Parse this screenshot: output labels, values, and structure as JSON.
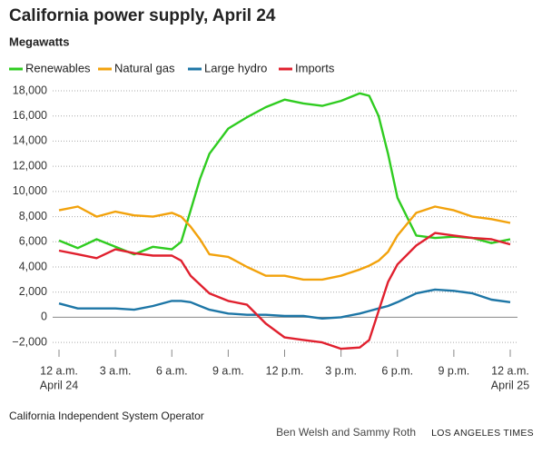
{
  "chart_data": {
    "type": "line",
    "title": "California power supply, April 24",
    "subtitle": "Megawatts",
    "source": "California Independent System Operator",
    "credit": "Ben Welsh and Sammy Roth",
    "publisher": "LOS ANGELES TIMES",
    "x_start_date": "April 24",
    "x_end_date": "April 25",
    "x": [
      0,
      1,
      2,
      3,
      4,
      5,
      6,
      6.5,
      7,
      7.5,
      8,
      9,
      10,
      11,
      12,
      13,
      14,
      15,
      16,
      16.5,
      17,
      17.5,
      18,
      19,
      20,
      21,
      22,
      23,
      24
    ],
    "series": [
      {
        "name": "Renewables",
        "color": "#2fcc20",
        "values": [
          6100,
          5500,
          6200,
          5600,
          5000,
          5600,
          5400,
          6000,
          8500,
          11000,
          13000,
          15000,
          15900,
          16700,
          17300,
          17000,
          16800,
          17200,
          17800,
          17600,
          16000,
          13000,
          9500,
          6500,
          6300,
          6400,
          6300,
          5900,
          6200
        ]
      },
      {
        "name": "Natural gas",
        "color": "#f2a20c",
        "values": [
          8500,
          8800,
          8000,
          8400,
          8100,
          8000,
          8300,
          8000,
          7200,
          6200,
          5000,
          4800,
          4000,
          3300,
          3300,
          3000,
          3000,
          3300,
          3800,
          4100,
          4500,
          5200,
          6500,
          8300,
          8800,
          8500,
          8000,
          7800,
          7500
        ]
      },
      {
        "name": "Large hydro",
        "color": "#1d76a6",
        "values": [
          1100,
          700,
          700,
          700,
          600,
          900,
          1300,
          1300,
          1200,
          900,
          600,
          300,
          200,
          200,
          100,
          100,
          -100,
          0,
          300,
          500,
          700,
          900,
          1200,
          1900,
          2200,
          2100,
          1900,
          1400,
          1200
        ]
      },
      {
        "name": "Imports",
        "color": "#e0202e",
        "values": [
          5300,
          5000,
          4700,
          5400,
          5100,
          4900,
          4900,
          4500,
          3300,
          2600,
          1900,
          1300,
          1000,
          -500,
          -1600,
          -1800,
          -2000,
          -2500,
          -2400,
          -1800,
          500,
          2800,
          4200,
          5700,
          6700,
          6500,
          6300,
          6200,
          5800
        ]
      }
    ],
    "xlim": [
      0,
      24
    ],
    "xticks": [
      {
        "value": 0,
        "label": "12 a.m."
      },
      {
        "value": 3,
        "label": "3 a.m."
      },
      {
        "value": 6,
        "label": "6 a.m."
      },
      {
        "value": 9,
        "label": "9 a.m."
      },
      {
        "value": 12,
        "label": "12 p.m."
      },
      {
        "value": 15,
        "label": "3 p.m."
      },
      {
        "value": 18,
        "label": "6 p.m."
      },
      {
        "value": 21,
        "label": "9 p.m."
      },
      {
        "value": 24,
        "label": "12 a.m."
      }
    ],
    "ylim": [
      -3000,
      18000
    ],
    "yticks": [
      {
        "value": -2000,
        "label": "−2,000"
      },
      0,
      {
        "value": 2000,
        "label": "2,000"
      },
      {
        "value": 4000,
        "label": "4,000"
      },
      {
        "value": 6000,
        "label": "6,000"
      },
      {
        "value": 8000,
        "label": "8,000"
      },
      {
        "value": 10000,
        "label": "10,000"
      },
      {
        "value": 12000,
        "label": "12,000"
      },
      {
        "value": 14000,
        "label": "14,000"
      },
      {
        "value": 16000,
        "label": "16,000"
      },
      {
        "value": 18000,
        "label": "18,000"
      }
    ],
    "grid": true
  }
}
